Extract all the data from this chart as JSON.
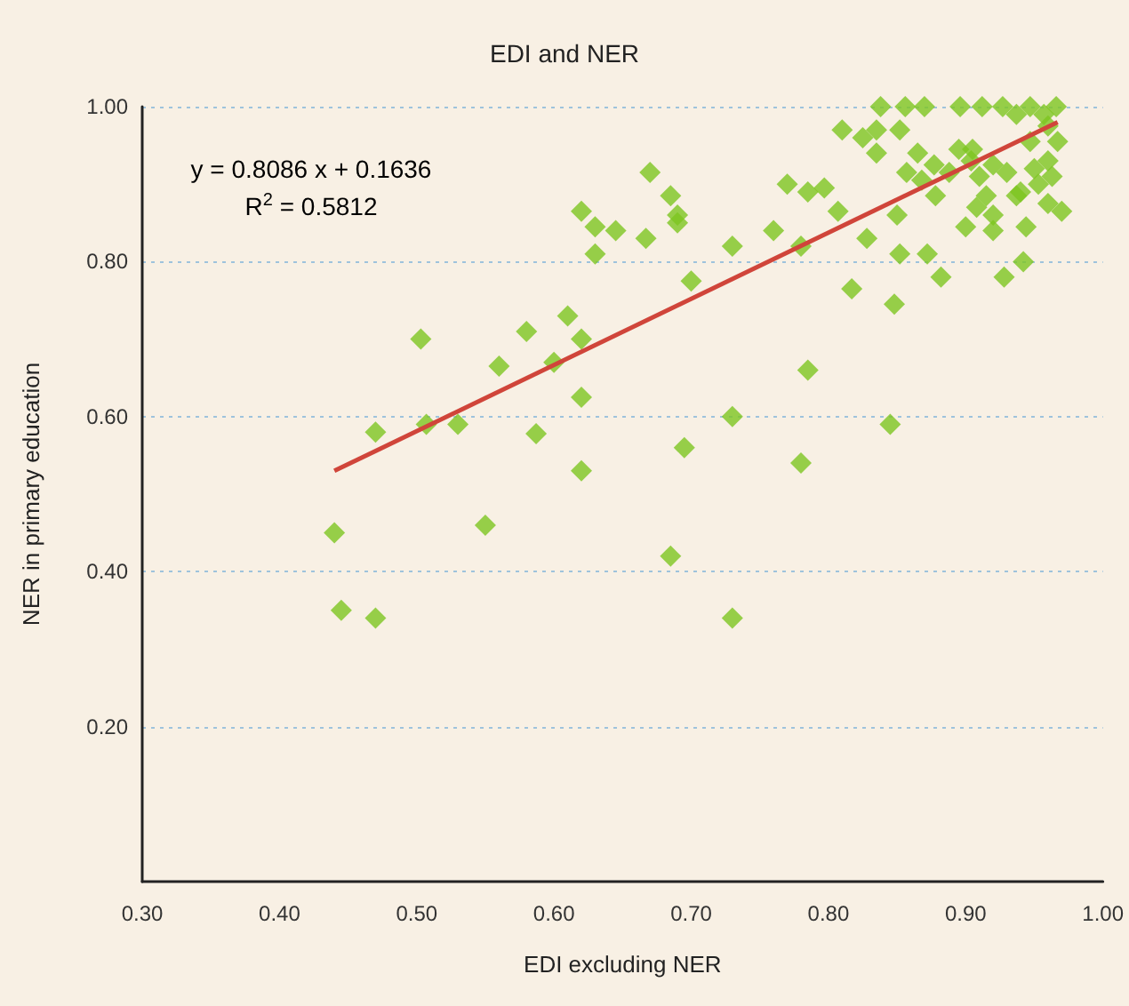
{
  "chart_data": {
    "type": "scatter",
    "title": "EDI and NER",
    "xlabel": "EDI excluding NER",
    "ylabel": "NER in primary education",
    "annotations": [
      "y = 0.8086 x + 0.1636",
      "R$^{2}$ = 0.5812"
    ],
    "xlim": [
      0.3,
      1.0
    ],
    "xticks": [
      {
        "value": 0.3,
        "label": "0.30"
      },
      {
        "value": 0.4,
        "label": "0.40"
      },
      {
        "value": 0.5,
        "label": "0.50"
      },
      {
        "value": 0.6,
        "label": "0.60"
      },
      {
        "value": 0.7,
        "label": "0.70"
      },
      {
        "value": 0.8,
        "label": "0.80"
      },
      {
        "value": 0.9,
        "label": "0.90"
      },
      {
        "value": 1.0,
        "label": "1.00"
      }
    ],
    "ylim": [
      0,
      1.0
    ],
    "yticks": [
      {
        "value": 0.2,
        "label": "0.20"
      },
      {
        "value": 0.4,
        "label": "0.40"
      },
      {
        "value": 0.6,
        "label": "0.60"
      },
      {
        "value": 0.8,
        "label": "0.80"
      },
      {
        "value": 1.0,
        "label": "1.00"
      }
    ],
    "grid": "y",
    "marker": "diamond",
    "series": [
      {
        "color": "#7dc520",
        "x": [
          0.44,
          0.445,
          0.47,
          0.47,
          0.503,
          0.507,
          0.53,
          0.55,
          0.56,
          0.58,
          0.587,
          0.6,
          0.61,
          0.62,
          0.62,
          0.62,
          0.62,
          0.63,
          0.63,
          0.645,
          0.667,
          0.67,
          0.685,
          0.69,
          0.69,
          0.685,
          0.695,
          0.7,
          0.73,
          0.73,
          0.73,
          0.76,
          0.77,
          0.78,
          0.78,
          0.785,
          0.785,
          0.797,
          0.807,
          0.81,
          0.817,
          0.825,
          0.828,
          0.835,
          0.838,
          0.835,
          0.845,
          0.848,
          0.85,
          0.852,
          0.856,
          0.852,
          0.857,
          0.868,
          0.865,
          0.87,
          0.872,
          0.878,
          0.882,
          0.888,
          0.895,
          0.896,
          0.9,
          0.904,
          0.908,
          0.912,
          0.91,
          0.915,
          0.92,
          0.92,
          0.927,
          0.928,
          0.93,
          0.937,
          0.937,
          0.942,
          0.944,
          0.947,
          0.947,
          0.95,
          0.953,
          0.957,
          0.96,
          0.96,
          0.966,
          0.963,
          0.967,
          0.96,
          0.97,
          0.92,
          0.94,
          0.905,
          0.877
        ],
        "values": [
          0.45,
          0.35,
          0.34,
          0.58,
          0.7,
          0.59,
          0.59,
          0.46,
          0.665,
          0.71,
          0.578,
          0.67,
          0.73,
          0.7,
          0.625,
          0.53,
          0.865,
          0.845,
          0.81,
          0.84,
          0.83,
          0.915,
          0.885,
          0.86,
          0.85,
          0.42,
          0.56,
          0.775,
          0.82,
          0.6,
          0.34,
          0.84,
          0.9,
          0.82,
          0.54,
          0.66,
          0.89,
          0.895,
          0.865,
          0.97,
          0.765,
          0.96,
          0.83,
          0.97,
          1.0,
          0.94,
          0.59,
          0.745,
          0.86,
          0.97,
          1.0,
          0.81,
          0.915,
          0.905,
          0.94,
          1.0,
          0.81,
          0.885,
          0.78,
          0.915,
          0.945,
          1.0,
          0.845,
          0.93,
          0.87,
          1.0,
          0.91,
          0.885,
          0.86,
          0.925,
          1.0,
          0.78,
          0.915,
          0.99,
          0.885,
          0.8,
          0.845,
          1.0,
          0.955,
          0.92,
          0.9,
          0.99,
          0.875,
          0.93,
          1.0,
          0.91,
          0.955,
          0.975,
          0.865,
          0.84,
          0.89,
          0.945,
          0.925
        ]
      },
      {
        "type": "line",
        "color": "#d0453a",
        "marker": "none",
        "line_style": "solid",
        "x": [
          0.44,
          0.967
        ],
        "values": [
          0.53,
          0.98
        ]
      }
    ]
  }
}
